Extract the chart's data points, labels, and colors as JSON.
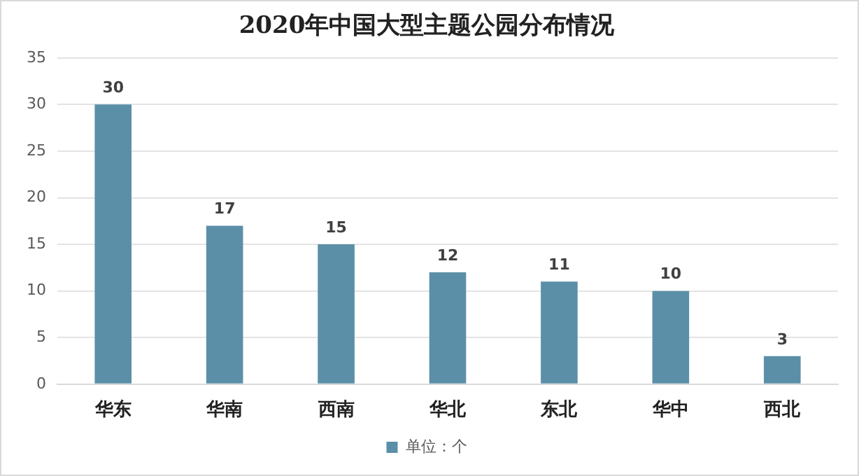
{
  "chart_data": {
    "type": "bar",
    "title": "2020年中国大型主题公园分布情况",
    "categories": [
      "华东",
      "华南",
      "西南",
      "华北",
      "东北",
      "华中",
      "西北"
    ],
    "series": [
      {
        "name": "单位：个",
        "color": "#5b8fa8",
        "values": [
          30,
          17,
          15,
          12,
          11,
          10,
          3
        ]
      }
    ],
    "ylim": [
      0,
      35
    ],
    "yticks": [
      0,
      5,
      10,
      15,
      20,
      25,
      30,
      35
    ],
    "grid": "y",
    "legend": "bottom",
    "data_labels": true
  }
}
